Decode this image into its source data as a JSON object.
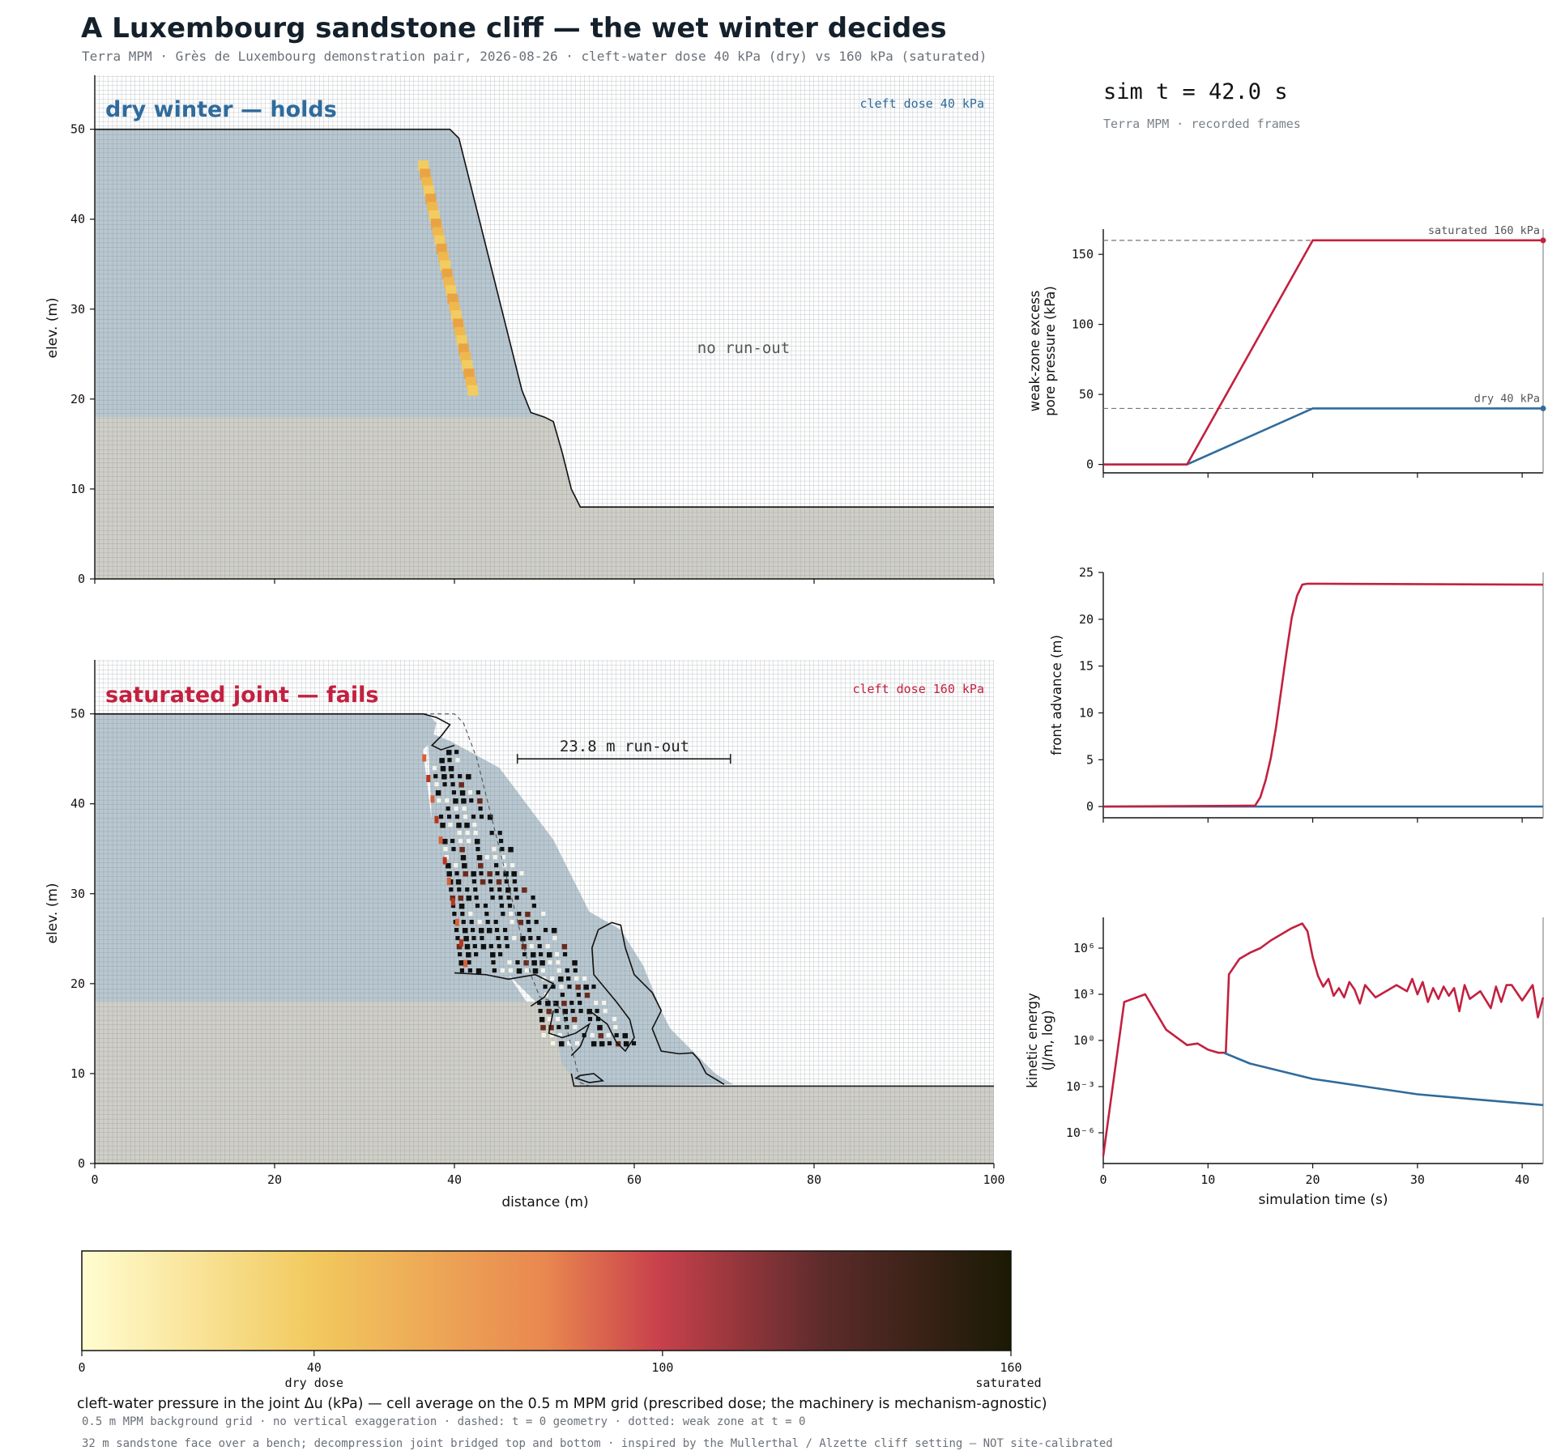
{
  "header": {
    "title": "A Luxembourg sandstone cliff — the wet winter decides",
    "subtitle": "Terra MPM · Grès de Luxembourg demonstration pair, 2026-08-26 · cleft-water dose 40 kPa (dry) vs 160 kPa (saturated)"
  },
  "sim": {
    "time_label": "sim t =  42.0 s",
    "source": "Terra MPM · recorded frames"
  },
  "colors": {
    "dry": "#2f6b9c",
    "saturated": "#c3203f",
    "rock": "#b8c7d0",
    "bench": "#d0cfc7",
    "grid": "#7b858d"
  },
  "panels": [
    {
      "label": "dry winter — holds",
      "dose_label": "cleft dose 40 kPa",
      "annotation": "no run-out",
      "ylabel": "elev. (m)"
    },
    {
      "label": "saturated joint — fails",
      "dose_label": "cleft dose 160 kPa",
      "annotation": "23.8 m run-out",
      "ylabel": "elev. (m)",
      "xlabel": "distance (m)"
    }
  ],
  "chart_data": [
    {
      "type": "area",
      "panel": "dry",
      "xlim": [
        0,
        100
      ],
      "ylim": [
        0,
        56
      ],
      "x_ticks": [
        0,
        20,
        40,
        60,
        80,
        100
      ],
      "y_ticks": [
        0,
        10,
        20,
        30,
        40,
        50
      ],
      "profile": {
        "x": [
          0,
          39.5,
          40.5,
          41.5,
          44,
          46,
          47.5,
          48.5,
          50,
          51,
          52,
          53,
          54,
          100
        ],
        "y": [
          50,
          50,
          49,
          45,
          35,
          27,
          21,
          18.5,
          18,
          17.5,
          14,
          10,
          8,
          8
        ]
      },
      "bench_top": 18,
      "weak_zone": {
        "top": [
          36.5,
          46
        ],
        "bottom": [
          42,
          21
        ],
        "dose_kPa": 40
      }
    },
    {
      "type": "area",
      "panel": "saturated",
      "xlim": [
        0,
        100
      ],
      "ylim": [
        0,
        56
      ],
      "x_ticks": [
        0,
        20,
        40,
        60,
        80,
        100
      ],
      "y_ticks": [
        0,
        10,
        20,
        30,
        40,
        50
      ],
      "runout_m": 23.8,
      "runout_bar": [
        47,
        70.7
      ],
      "dose_kPa": 160
    },
    {
      "type": "line",
      "xlim": [
        0,
        42
      ],
      "ylim": [
        -6,
        168
      ],
      "y_ticks": [
        0,
        50,
        100,
        150
      ],
      "ylabel": "weak-zone excess\npore pressure (kPa)",
      "reference_lines": [
        {
          "label": "saturated 160 kPa",
          "value": 160
        },
        {
          "label": "dry 40 kPa",
          "value": 40
        }
      ],
      "series": [
        {
          "x": [
            0,
            8,
            20,
            42
          ],
          "y": [
            0,
            0,
            160,
            160
          ]
        },
        {
          "x": [
            0,
            8,
            20,
            42
          ],
          "y": [
            0,
            0,
            40,
            40
          ]
        }
      ]
    },
    {
      "type": "line",
      "xlim": [
        0,
        42
      ],
      "ylim": [
        -1.2,
        25
      ],
      "y_ticks": [
        0,
        5,
        10,
        15,
        20,
        25
      ],
      "ylabel": "front advance (m)",
      "series": [
        {
          "x": [
            0,
            14.5,
            15,
            15.5,
            16,
            16.5,
            17,
            17.5,
            18,
            18.5,
            19,
            19.5,
            42
          ],
          "y": [
            0,
            0.1,
            1.0,
            2.8,
            5.2,
            8.5,
            12.5,
            16.5,
            20.2,
            22.5,
            23.7,
            23.8,
            23.7
          ]
        },
        {
          "x": [
            0,
            42
          ],
          "y": [
            0,
            0
          ]
        }
      ]
    },
    {
      "type": "line",
      "xlim": [
        0,
        42
      ],
      "ylim": [
        -8,
        8
      ],
      "log_y": true,
      "y_ticks": [
        "10⁶",
        "10³",
        "10⁰",
        "10⁻³",
        "10⁻⁶"
      ],
      "ylabel": "kinetic energy\n(J/m, log)",
      "xlabel": "simulation time (s)",
      "x_ticks": [
        0,
        10,
        20,
        30,
        40
      ],
      "series": [
        {
          "x": [
            0,
            2,
            4,
            6,
            8,
            9,
            10,
            11,
            11.7,
            12,
            12.5,
            13,
            14,
            15,
            16,
            17,
            18,
            19,
            19.5,
            20,
            20.5,
            21,
            21.5,
            22,
            22.5,
            23,
            23.5,
            24,
            24.5,
            25,
            26,
            27,
            28,
            29,
            29.5,
            30,
            30.5,
            31,
            31.5,
            32,
            32.5,
            33,
            33.5,
            34,
            34.5,
            35,
            36,
            37,
            37.5,
            38,
            38.5,
            39,
            40,
            41,
            41.5,
            42
          ],
          "y": [
            -7.5,
            2.5,
            3.0,
            0.7,
            -0.3,
            -0.2,
            -0.6,
            -0.8,
            -0.8,
            4.3,
            4.8,
            5.3,
            5.7,
            6.0,
            6.5,
            6.9,
            7.3,
            7.6,
            7.1,
            5.4,
            4.2,
            3.5,
            4.0,
            2.9,
            3.4,
            2.8,
            3.8,
            3.3,
            2.4,
            3.6,
            2.8,
            3.2,
            3.6,
            3.2,
            4.0,
            3.0,
            3.8,
            2.5,
            3.4,
            2.7,
            3.5,
            2.9,
            3.4,
            1.9,
            3.6,
            2.7,
            3.2,
            2.1,
            3.5,
            2.5,
            3.6,
            3.6,
            2.6,
            3.6,
            1.5,
            2.8
          ]
        },
        {
          "x": [
            11.5,
            14,
            17,
            20,
            25,
            30,
            35,
            42
          ],
          "y": [
            -0.8,
            -1.5,
            -2.0,
            -2.5,
            -3.0,
            -3.5,
            -3.8,
            -4.2
          ]
        }
      ]
    },
    {
      "type": "heatmap",
      "colorbar": true,
      "range": [
        0,
        160
      ],
      "ticks": [
        0,
        40,
        100,
        160
      ],
      "tick_notes": {
        "40": "dry dose",
        "160": "saturated"
      },
      "label": "cleft-water pressure in the joint Δu (kPa) — cell average on the 0.5 m MPM grid (prescribed dose; the machinery is mechanism-agnostic)"
    }
  ],
  "footer": {
    "note1": "0.5 m MPM background grid · no vertical exaggeration · dashed: t = 0 geometry · dotted: weak zone at t = 0",
    "note2": "32 m sandstone face over a bench; decompression joint bridged top and bottom · inspired by the Mullerthal / Alzette cliff setting — NOT site-calibrated"
  }
}
